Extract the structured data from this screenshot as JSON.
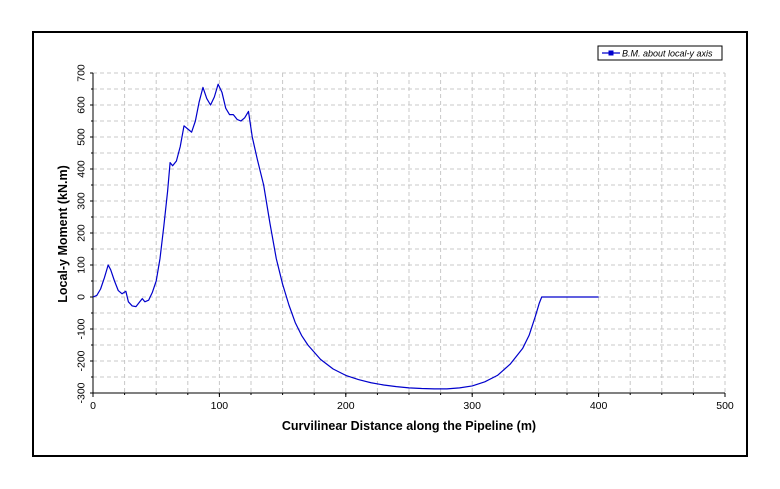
{
  "chart_data": {
    "type": "line",
    "title": "",
    "xlabel": "Curvilinear Distance along the Pipeline (m)",
    "ylabel": "Local-y Moment (kN.m)",
    "xlim": [
      0,
      500
    ],
    "ylim": [
      -300,
      700
    ],
    "x_ticks": [
      0,
      100,
      200,
      300,
      400,
      500
    ],
    "y_ticks": [
      -300,
      -200,
      -100,
      0,
      100,
      200,
      300,
      400,
      500,
      600,
      700
    ],
    "x_tick_labels": [
      "0",
      "100",
      "200",
      "300",
      "400",
      "500"
    ],
    "y_tick_labels": [
      "-300",
      "-200",
      "-100",
      "0",
      "100",
      "200",
      "300",
      "400",
      "500",
      "600",
      "700"
    ],
    "grid": true,
    "legend_position": "top-right",
    "series": [
      {
        "name": "B.M. about local-y axis",
        "color": "#0000cc",
        "points": [
          [
            0,
            0
          ],
          [
            3,
            5
          ],
          [
            6,
            25
          ],
          [
            9,
            60
          ],
          [
            12,
            100
          ],
          [
            14,
            85
          ],
          [
            17,
            50
          ],
          [
            20,
            20
          ],
          [
            23,
            10
          ],
          [
            26,
            18
          ],
          [
            28,
            -15
          ],
          [
            31,
            -28
          ],
          [
            34,
            -30
          ],
          [
            37,
            -15
          ],
          [
            39,
            -5
          ],
          [
            41,
            -15
          ],
          [
            44,
            -10
          ],
          [
            47,
            15
          ],
          [
            50,
            50
          ],
          [
            53,
            120
          ],
          [
            56,
            220
          ],
          [
            59,
            330
          ],
          [
            61,
            420
          ],
          [
            63,
            410
          ],
          [
            66,
            425
          ],
          [
            69,
            470
          ],
          [
            72,
            535
          ],
          [
            75,
            525
          ],
          [
            78,
            515
          ],
          [
            81,
            550
          ],
          [
            84,
            610
          ],
          [
            87,
            655
          ],
          [
            90,
            620
          ],
          [
            93,
            600
          ],
          [
            96,
            625
          ],
          [
            99,
            665
          ],
          [
            102,
            640
          ],
          [
            105,
            590
          ],
          [
            108,
            570
          ],
          [
            111,
            570
          ],
          [
            114,
            555
          ],
          [
            117,
            550
          ],
          [
            120,
            560
          ],
          [
            123,
            580
          ],
          [
            126,
            500
          ],
          [
            130,
            430
          ],
          [
            135,
            350
          ],
          [
            140,
            230
          ],
          [
            145,
            120
          ],
          [
            150,
            40
          ],
          [
            155,
            -25
          ],
          [
            160,
            -80
          ],
          [
            165,
            -120
          ],
          [
            170,
            -150
          ],
          [
            180,
            -195
          ],
          [
            190,
            -225
          ],
          [
            200,
            -245
          ],
          [
            210,
            -258
          ],
          [
            220,
            -268
          ],
          [
            230,
            -275
          ],
          [
            240,
            -280
          ],
          [
            250,
            -284
          ],
          [
            260,
            -286
          ],
          [
            270,
            -287
          ],
          [
            280,
            -287
          ],
          [
            290,
            -284
          ],
          [
            300,
            -278
          ],
          [
            310,
            -265
          ],
          [
            320,
            -245
          ],
          [
            330,
            -210
          ],
          [
            340,
            -160
          ],
          [
            345,
            -120
          ],
          [
            350,
            -60
          ],
          [
            353,
            -20
          ],
          [
            355,
            0
          ],
          [
            360,
            0
          ],
          [
            370,
            0
          ],
          [
            380,
            0
          ],
          [
            390,
            0
          ],
          [
            400,
            0
          ]
        ]
      }
    ]
  }
}
